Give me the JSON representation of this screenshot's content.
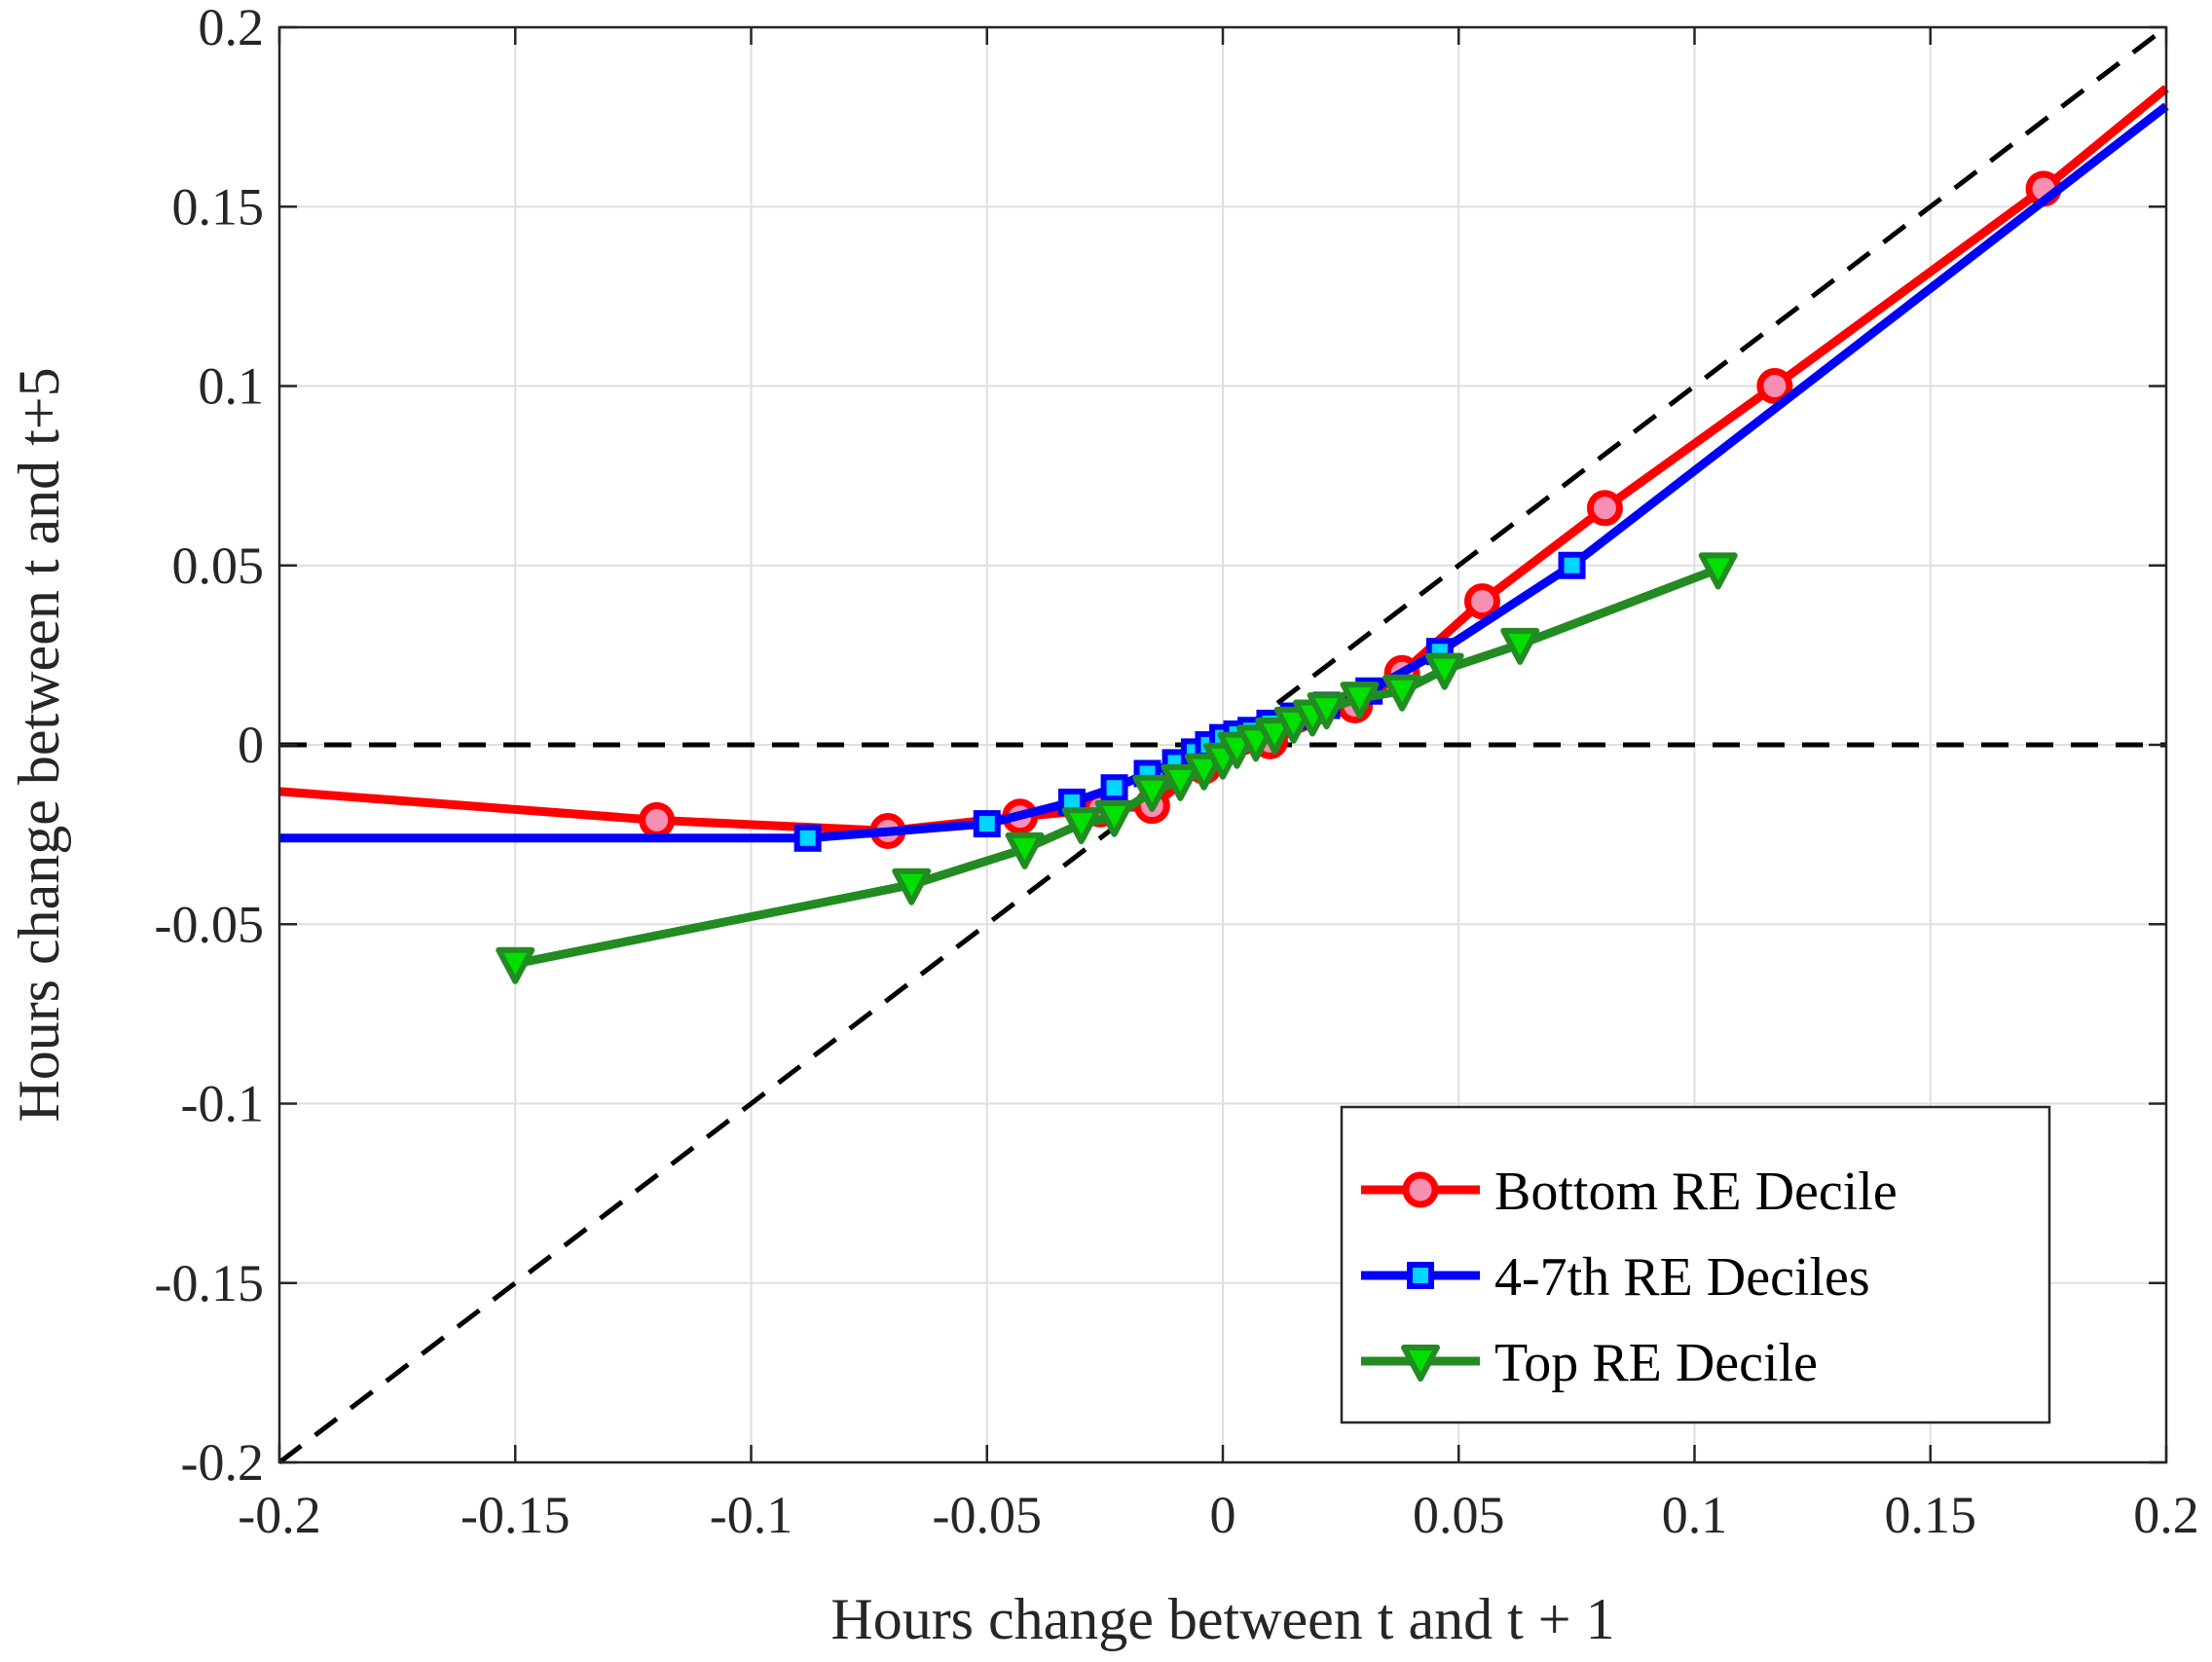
{
  "chart_data": {
    "type": "line",
    "xlabel": "Hours change between t and t + 1",
    "ylabel": "Hours change between t and t+5",
    "xlim": [
      -0.2,
      0.2
    ],
    "ylim": [
      -0.2,
      0.2
    ],
    "xticks": [
      "-0.2",
      "-0.15",
      "-0.1",
      "-0.05",
      "0",
      "0.05",
      "0.1",
      "0.15",
      "0.2"
    ],
    "yticks": [
      "-0.2",
      "-0.15",
      "-0.1",
      "-0.05",
      "0",
      "0.05",
      "0.1",
      "0.15",
      "0.2"
    ],
    "grid": true,
    "legend_position": "bottom-right",
    "reference_lines": [
      {
        "kind": "45-degree",
        "style": "dashed",
        "color": "#000000"
      },
      {
        "kind": "y=0",
        "style": "dashed",
        "color": "#000000"
      }
    ],
    "series": [
      {
        "name": "Bottom RE Decile",
        "color": "#ff0000",
        "marker": "circle",
        "marker_fill": "#f78fb3",
        "x": [
          -0.2,
          -0.12,
          -0.071,
          -0.043,
          -0.026,
          -0.015,
          -0.004,
          0.01,
          0.028,
          0.038,
          0.055,
          0.081,
          0.117,
          0.174,
          0.2
        ],
        "y": [
          -0.013,
          -0.021,
          -0.024,
          -0.02,
          -0.018,
          -0.017,
          -0.006,
          0.001,
          0.011,
          0.02,
          0.04,
          0.066,
          0.1,
          0.155,
          0.183
        ]
      },
      {
        "name": "4-7th RE Deciles",
        "color": "#0000ff",
        "marker": "square",
        "marker_fill": "#00d5ff",
        "x": [
          -0.2,
          -0.088,
          -0.05,
          -0.032,
          -0.023,
          -0.016,
          -0.01,
          -0.006,
          -0.003,
          0.0,
          0.003,
          0.006,
          0.01,
          0.015,
          0.022,
          0.031,
          0.046,
          0.074,
          0.2
        ],
        "y": [
          -0.026,
          -0.026,
          -0.022,
          -0.016,
          -0.012,
          -0.008,
          -0.005,
          -0.002,
          0.0,
          0.002,
          0.003,
          0.004,
          0.006,
          0.008,
          0.011,
          0.015,
          0.026,
          0.05,
          0.178
        ]
      },
      {
        "name": "Top RE Decile",
        "color": "#228b22",
        "marker": "triangle-down",
        "marker_fill": "#00e000",
        "x": [
          -0.15,
          -0.066,
          -0.042,
          -0.03,
          -0.023,
          -0.015,
          -0.009,
          -0.004,
          0.0,
          0.003,
          0.007,
          0.011,
          0.015,
          0.019,
          0.022,
          0.029,
          0.038,
          0.047,
          0.063,
          0.105
        ],
        "y": [
          -0.061,
          -0.039,
          -0.029,
          -0.022,
          -0.02,
          -0.013,
          -0.01,
          -0.007,
          -0.004,
          -0.001,
          0.001,
          0.003,
          0.006,
          0.008,
          0.01,
          0.013,
          0.015,
          0.021,
          0.028,
          0.049
        ]
      }
    ]
  }
}
